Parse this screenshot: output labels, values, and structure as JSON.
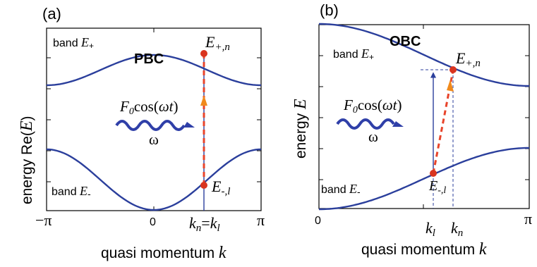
{
  "panel_a": {
    "letter": "(a)",
    "tag": "PBC",
    "ylabel_prefix": "energy Re(",
    "ylabel_var": "E",
    "ylabel_suffix": ")",
    "xlabel_text": "quasi momentum ",
    "xlabel_var": "k",
    "upper_band_prefix": "band ",
    "upper_band_var": "E",
    "upper_band_sub": "+",
    "lower_band_prefix": "band ",
    "lower_band_var": "E",
    "lower_band_sub": "-",
    "point_upper_var": "E",
    "point_upper_sub": "+,n",
    "point_lower_var": "E",
    "point_lower_sub": "-,l",
    "drive_F": "F",
    "drive_F_sub": "0",
    "drive_cos": "cos(",
    "drive_omega_t": "ωt",
    "drive_close": ")",
    "omega": "ω",
    "tick_left": "−π",
    "tick_mid": "0",
    "tick_right": "π",
    "tick_k_var": "k",
    "tick_k_sub1": "n",
    "tick_k_eq": "=",
    "tick_k_sub2": "l"
  },
  "panel_b": {
    "letter": "(b)",
    "tag": "OBC",
    "ylabel_prefix": "energy ",
    "ylabel_var": "E",
    "xlabel_text": "quasi momentum ",
    "xlabel_var": "k",
    "upper_band_prefix": "band ",
    "upper_band_var": "E",
    "upper_band_sub": "+",
    "lower_band_prefix": "band ",
    "lower_band_var": "E",
    "lower_band_sub": "-",
    "point_upper_var": "E",
    "point_upper_sub": "+,n",
    "point_lower_var": "E",
    "point_lower_sub": "-,l",
    "drive_F": "F",
    "drive_F_sub": "0",
    "drive_cos": "cos(",
    "drive_omega_t": "ωt",
    "drive_close": ")",
    "omega": "ω",
    "tick_left": "0",
    "tick_right": "π",
    "tick_kl_var": "k",
    "tick_kl_sub": "l",
    "tick_kn_var": "k",
    "tick_kn_sub": "n"
  },
  "colors": {
    "band": "#2b3f9c",
    "transition": "#e8442b",
    "point": "#d9341f",
    "wave": "#2f3fa8",
    "arrow_head": "#f08a1c"
  }
}
